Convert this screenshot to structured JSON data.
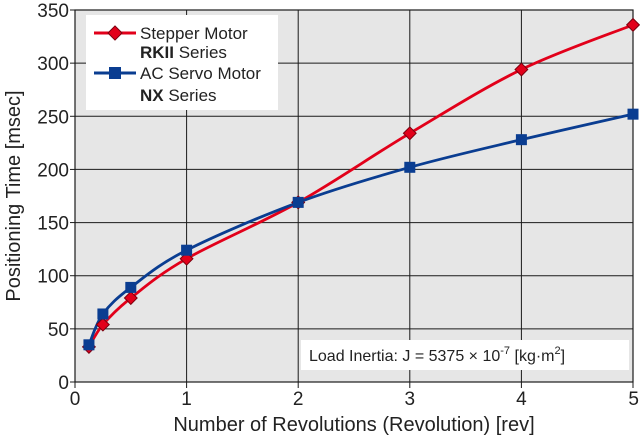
{
  "chart_data": {
    "type": "line",
    "xlabel": "Number of Revolutions (Revolution) [rev]",
    "ylabel": "Positioning Time [msec]",
    "xlim": [
      0,
      5
    ],
    "ylim": [
      0,
      350
    ],
    "x_ticks": [
      0,
      1,
      2,
      3,
      4,
      5
    ],
    "y_ticks": [
      0,
      50,
      100,
      150,
      200,
      250,
      300,
      350
    ],
    "grid": true,
    "background": "#e6e6e6",
    "legend_position": "top-left",
    "series": [
      {
        "name": "Stepper Motor",
        "name_bold": "RKII",
        "name_suffix": " Series",
        "color": "#e2001a",
        "marker": "diamond",
        "x": [
          0.125,
          0.25,
          0.5,
          1,
          2,
          3,
          4,
          5
        ],
        "y": [
          33,
          54,
          79,
          116,
          169,
          234,
          294,
          336
        ]
      },
      {
        "name": "AC Servo Motor",
        "name_bold": "NX",
        "name_suffix": " Series",
        "color": "#0a3d91",
        "marker": "square",
        "x": [
          0.125,
          0.25,
          0.5,
          1,
          2,
          3,
          4,
          5
        ],
        "y": [
          35,
          64,
          89,
          124,
          169,
          202,
          228,
          252
        ]
      }
    ],
    "annotation": {
      "prefix": "Load Inertia: J = 5375 × 10",
      "exponent": "-7",
      "suffix": " [kg·m",
      "unit_exponent": "2",
      "close": "]"
    }
  }
}
